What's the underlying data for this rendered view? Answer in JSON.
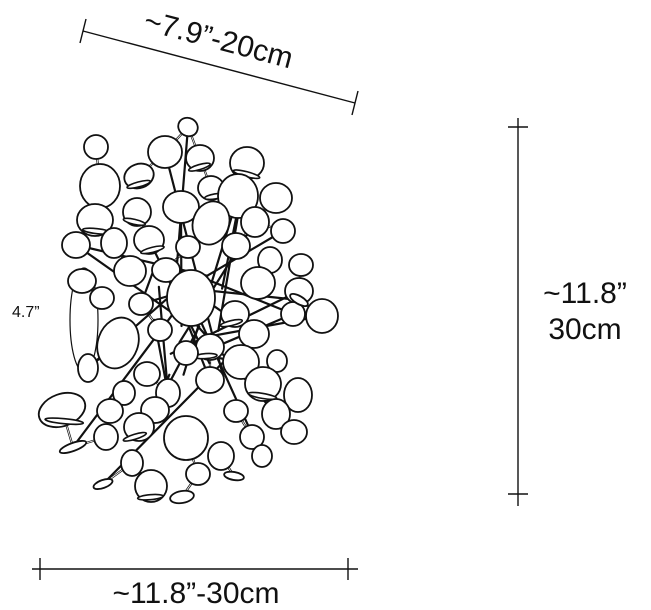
{
  "dimensions": {
    "top_diagonal": "~7.9”-20cm",
    "depth": "4.7”",
    "height_line1": "~11.8”",
    "height_line2": "30cm",
    "bottom_width": "~11.8”-30cm"
  },
  "colors": {
    "line": "#111111",
    "fill": "#ffffff"
  }
}
